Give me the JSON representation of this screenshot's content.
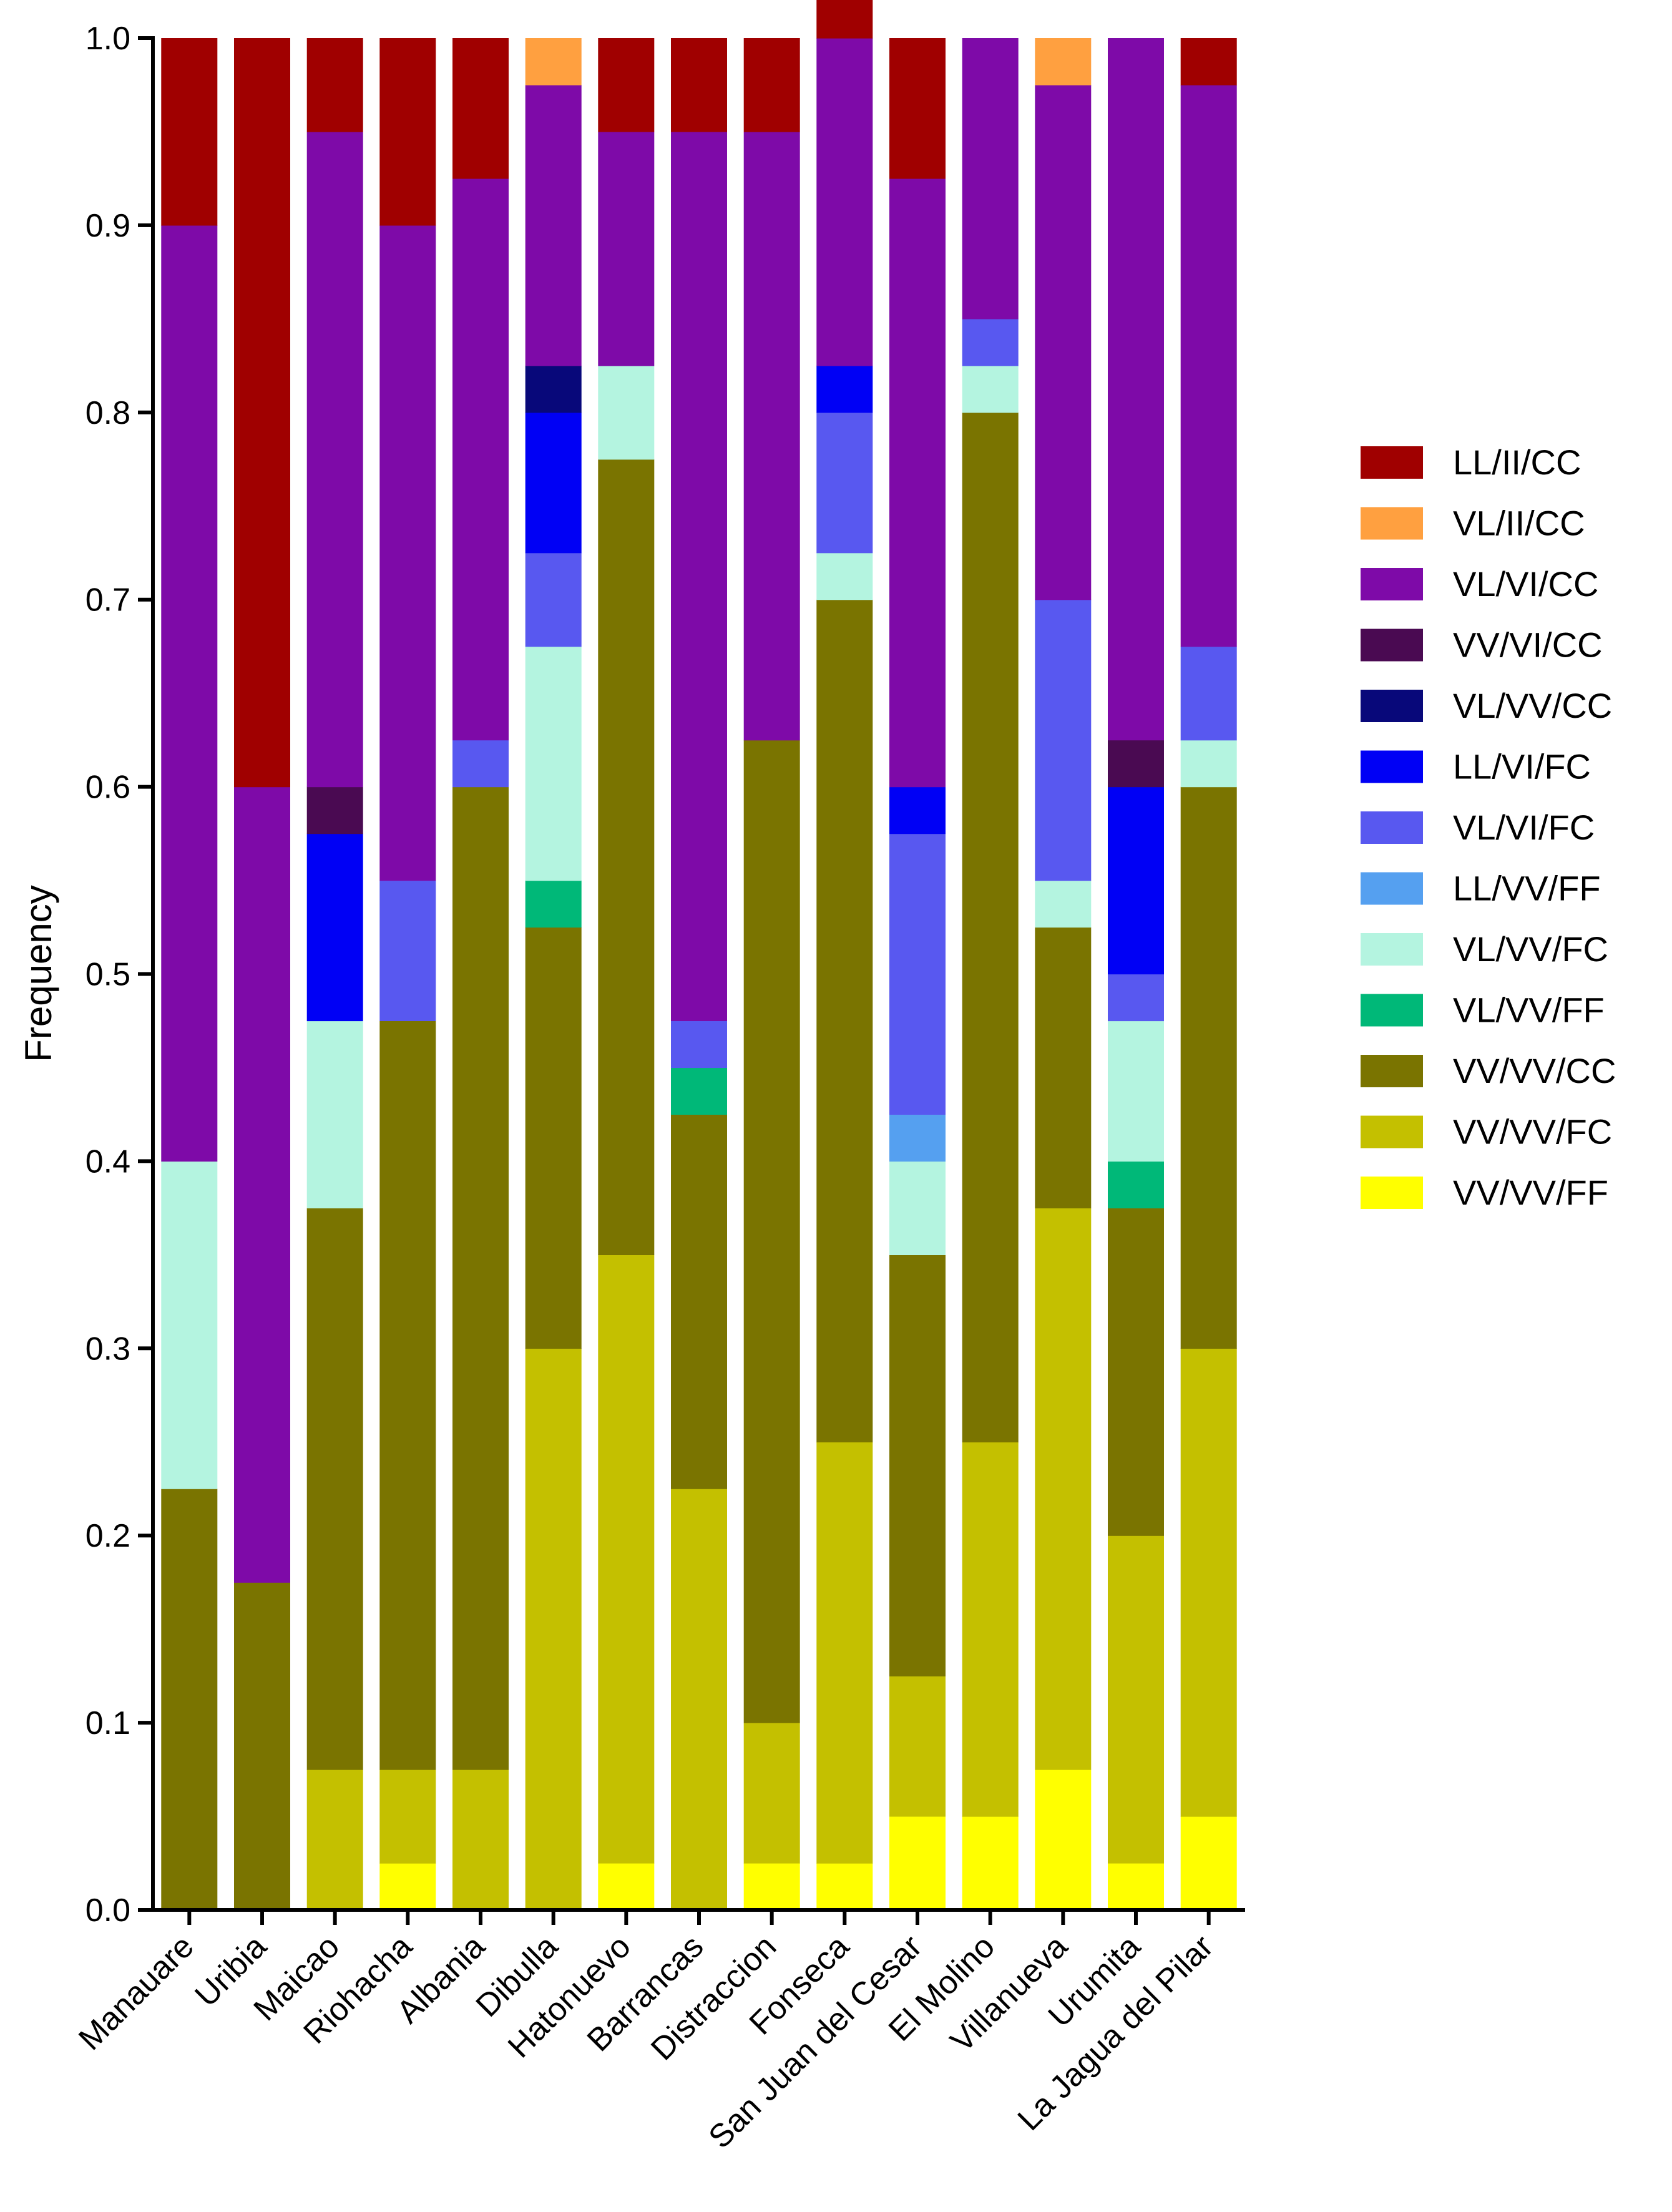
{
  "chart_data": {
    "type": "bar",
    "stacked": true,
    "title": "",
    "xlabel": "",
    "ylabel": "Frequency",
    "ylim": [
      0,
      1.0
    ],
    "yticks": [
      "0.0",
      "0.1",
      "0.2",
      "0.3",
      "0.4",
      "0.5",
      "0.6",
      "0.7",
      "0.8",
      "0.9",
      "1.0"
    ],
    "legend_position": "right",
    "categories": [
      "Manauare",
      "Uribia",
      "Maicao",
      "Riohacha",
      "Albania",
      "Dibulla",
      "Hatonuevo",
      "Barrancas",
      "Distraccion",
      "Fonseca",
      "San Juan del Cesar",
      "El Molino",
      "Villanueva",
      "Urumita",
      "La Jagua del Pilar"
    ],
    "series": [
      {
        "name": "VV/VV/FF",
        "color": "#ffff00",
        "values": [
          0,
          0,
          0,
          0.025,
          0,
          0,
          0.025,
          0,
          0.025,
          0.025,
          0.05,
          0.05,
          0.075,
          0.025,
          0.05
        ]
      },
      {
        "name": "VV/VV/FC",
        "color": "#c4c000",
        "values": [
          0,
          0,
          0.075,
          0.05,
          0.075,
          0.3,
          0.325,
          0.225,
          0.075,
          0.225,
          0.075,
          0.2,
          0.3,
          0.175,
          0.25
        ]
      },
      {
        "name": "VV/VV/CC",
        "color": "#7a7400",
        "values": [
          0.225,
          0.175,
          0.3,
          0.4,
          0.525,
          0.225,
          0.425,
          0.2,
          0.525,
          0.45,
          0.225,
          0.55,
          0.15,
          0.175,
          0.3
        ]
      },
      {
        "name": "VL/VV/FF",
        "color": "#00b878",
        "values": [
          0,
          0,
          0,
          0,
          0,
          0.025,
          0,
          0.025,
          0,
          0,
          0,
          0,
          0,
          0.025,
          0
        ]
      },
      {
        "name": "VL/VV/FC",
        "color": "#b4f4e0",
        "values": [
          0.175,
          0,
          0.1,
          0,
          0,
          0.125,
          0.05,
          0,
          0,
          0.025,
          0.05,
          0.025,
          0.025,
          0.075,
          0.025
        ]
      },
      {
        "name": "LL/VV/FF",
        "color": "#55a0f0",
        "values": [
          0,
          0,
          0,
          0,
          0,
          0,
          0,
          0,
          0,
          0,
          0.025,
          0,
          0,
          0,
          0
        ]
      },
      {
        "name": "VL/VI/FC",
        "color": "#5858f0",
        "values": [
          0,
          0,
          0,
          0.075,
          0.025,
          0.05,
          0,
          0.025,
          0,
          0.075,
          0.15,
          0.025,
          0.15,
          0.025,
          0.05
        ]
      },
      {
        "name": "LL/VI/FC",
        "color": "#0000f5",
        "values": [
          0,
          0,
          0.1,
          0,
          0,
          0.075,
          0,
          0,
          0,
          0.025,
          0.025,
          0,
          0,
          0.1,
          0
        ]
      },
      {
        "name": "VL/VV/CC",
        "color": "#08087a",
        "values": [
          0,
          0,
          0,
          0,
          0,
          0.025,
          0,
          0,
          0,
          0,
          0,
          0,
          0,
          0,
          0
        ]
      },
      {
        "name": "VV/VI/CC",
        "color": "#4a0a52",
        "values": [
          0,
          0,
          0.025,
          0,
          0,
          0,
          0,
          0,
          0,
          0,
          0,
          0,
          0,
          0.025,
          0
        ]
      },
      {
        "name": "VL/VI/CC",
        "color": "#7e0aa8",
        "values": [
          0.5,
          0.425,
          0.35,
          0.35,
          0.3,
          0.15,
          0.125,
          0.475,
          0.325,
          0.175,
          0.325,
          0.15,
          0.275,
          0.375,
          0.3
        ]
      },
      {
        "name": "VL/II/CC",
        "color": "#ffa040",
        "values": [
          0,
          0,
          0,
          0,
          0,
          0.025,
          0,
          0,
          0,
          0,
          0,
          0,
          0.025,
          0,
          0
        ]
      },
      {
        "name": "LL/II/CC",
        "color": "#a00000",
        "values": [
          0.1,
          0.4,
          0.05,
          0.1,
          0.075,
          0,
          0.05,
          0.05,
          0.05,
          0.025,
          0.075,
          0,
          0,
          0,
          0.025
        ]
      }
    ],
    "legend_order": [
      "LL/II/CC",
      "VL/II/CC",
      "VL/VI/CC",
      "VV/VI/CC",
      "VL/VV/CC",
      "LL/VI/FC",
      "VL/VI/FC",
      "LL/VV/FF",
      "VL/VV/FC",
      "VL/VV/FF",
      "VV/VV/CC",
      "VV/VV/FC",
      "VV/VV/FF"
    ]
  }
}
